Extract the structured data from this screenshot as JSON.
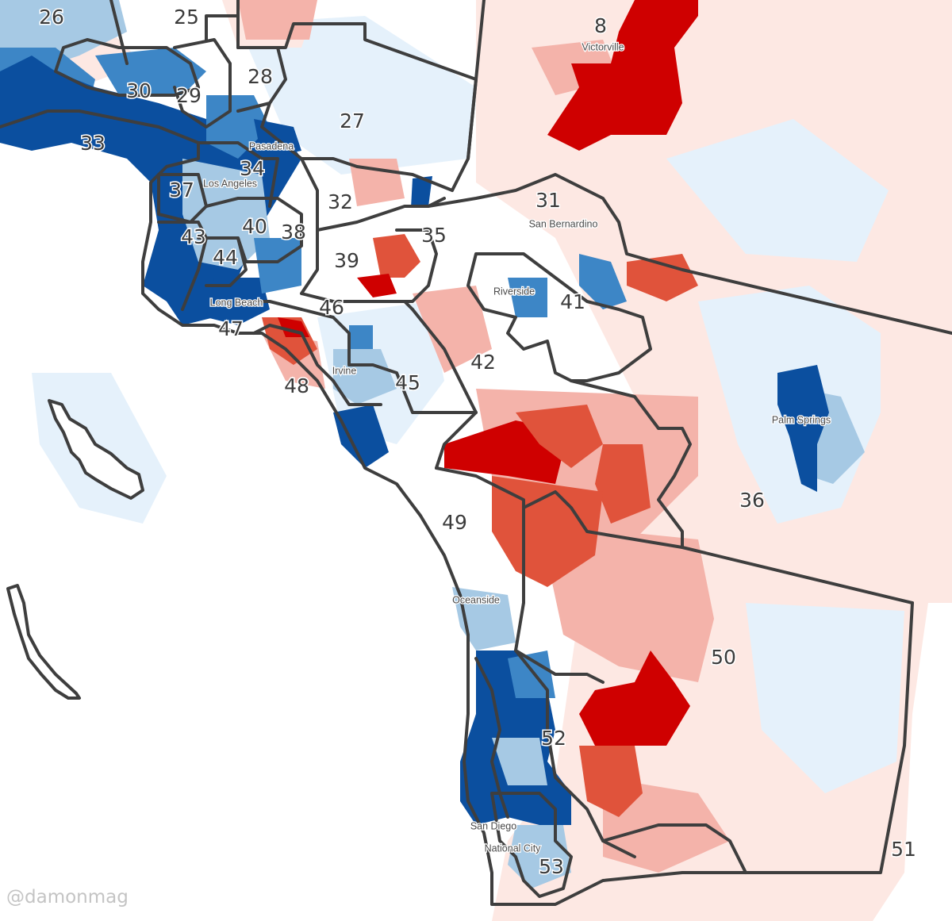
{
  "credit": "@damonmag",
  "colors": {
    "dem_strong": "#0b4f9f",
    "dem_mid": "#3d86c6",
    "dem_light": "#a6c9e4",
    "dem_faint": "#e5f1fb",
    "rep_strong": "#cf0000",
    "rep_mid": "#e0533b",
    "rep_light": "#f4b3aa",
    "rep_faint": "#fde8e3",
    "boundary": "#3e3e3e"
  },
  "districts": [
    "26",
    "25",
    "8",
    "30",
    "29",
    "28",
    "27",
    "33",
    "34",
    "37",
    "32",
    "31",
    "40",
    "38",
    "35",
    "43",
    "44",
    "39",
    "41",
    "46",
    "47",
    "42",
    "48",
    "45",
    "36",
    "49",
    "50",
    "52",
    "53",
    "51"
  ],
  "cities": [
    "Victorville",
    "Pasadena",
    "Los Angeles",
    "San Bernardino",
    "Riverside",
    "Long Beach",
    "Irvine",
    "Palm Springs",
    "Oceanside",
    "San Diego",
    "National City"
  ]
}
